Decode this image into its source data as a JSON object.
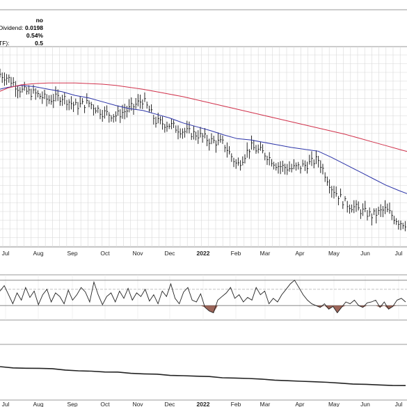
{
  "info_panel": {
    "rows": [
      {
        "label": "",
        "value": "no"
      },
      {
        "label": "Dividend:",
        "value": "0.0198"
      },
      {
        "label": "",
        "value": "0.54%"
      },
      {
        "label": "TF):",
        "value": "0.5"
      }
    ]
  },
  "colors": {
    "price_bars": "#111111",
    "ma_short": "#2b33a8",
    "ma_long": "#d0304a",
    "indicator_line": "#222222",
    "indicator_fill": "#8b4a3c",
    "grid": "#d8d8d8",
    "frame": "#9a9a9a"
  },
  "chart_data": [
    {
      "type": "ohlc",
      "x_tick_labels": [
        "Jul",
        "Aug",
        "Sep",
        "Oct",
        "Nov",
        "Dec",
        "2022",
        "Feb",
        "Mar",
        "Apr",
        "May",
        "Jun",
        "Jul"
      ],
      "y_axis_labels": "not visible",
      "grid": true,
      "series": [
        {
          "kind": "price",
          "close": [
            100,
            99,
            97,
            96.5,
            95.5,
            96,
            94.5,
            95,
            93.5,
            93,
            94,
            95.5,
            92,
            91.5,
            90.5,
            90,
            89,
            88.5,
            85,
            88,
            87,
            85,
            84.5,
            85,
            86,
            81.5,
            79,
            78,
            77,
            78,
            76,
            75.5
          ]
        },
        {
          "kind": "moving-average",
          "values": [
            97,
            97.5,
            97.8,
            97.6,
            97.2,
            96.8,
            96.2,
            95.8,
            95.2,
            94.6,
            94.1,
            93.8,
            93.2,
            92.6,
            91.8,
            91.2,
            90.6,
            89.9,
            89.3,
            89.1,
            88.7,
            88.3,
            87.9,
            87.6,
            87.3,
            86.3,
            85.2,
            84.1,
            83,
            81.9,
            81,
            80.2
          ]
        },
        {
          "kind": "moving-average",
          "values": [
            96.5,
            97.4,
            97.9,
            98.1,
            98.2,
            98.2,
            98.2,
            98.1,
            98,
            97.8,
            97.5,
            97.2,
            96.8,
            96.4,
            96,
            95.5,
            95,
            94.5,
            94,
            93.5,
            93,
            92.5,
            92,
            91.5,
            91,
            90.5,
            90,
            89.4,
            88.8,
            88.2,
            87.6,
            87
          ]
        }
      ]
    },
    {
      "type": "line",
      "reference_levels": "horizontal lines at 3 levels (values not printed)",
      "values": [
        62,
        68,
        58,
        48,
        60,
        52,
        66,
        55,
        62,
        47,
        58,
        64,
        50,
        60,
        56,
        48,
        63,
        52,
        58,
        66,
        61,
        50,
        72,
        58,
        47,
        56,
        60,
        50,
        62,
        54,
        65,
        52,
        60,
        56,
        64,
        51,
        58,
        48,
        62,
        56,
        70,
        54,
        48,
        61,
        66,
        52,
        50,
        59,
        44,
        40,
        38,
        52,
        56,
        60,
        66,
        54,
        58,
        50,
        55,
        52,
        66,
        58,
        62,
        48,
        54,
        50,
        58,
        64,
        70,
        74,
        66,
        58,
        52,
        48,
        46,
        44,
        48,
        42,
        45,
        38,
        44,
        50,
        48,
        52,
        46,
        44,
        49,
        50,
        52,
        44,
        50,
        42,
        45,
        52,
        54,
        50
      ],
      "fill_below": 46
    },
    {
      "type": "line",
      "values": [
        100,
        99.5,
        99,
        98.8,
        98.5,
        98,
        97.5,
        97.2,
        97,
        96.5,
        96,
        95.8,
        95.5,
        95,
        94.8,
        94.2,
        94,
        93.5,
        93,
        92.8,
        92.3,
        92,
        91.5,
        91.2,
        90.8,
        90.4,
        90,
        89.6,
        89.2,
        88.9,
        88.6,
        88.4
      ]
    }
  ]
}
